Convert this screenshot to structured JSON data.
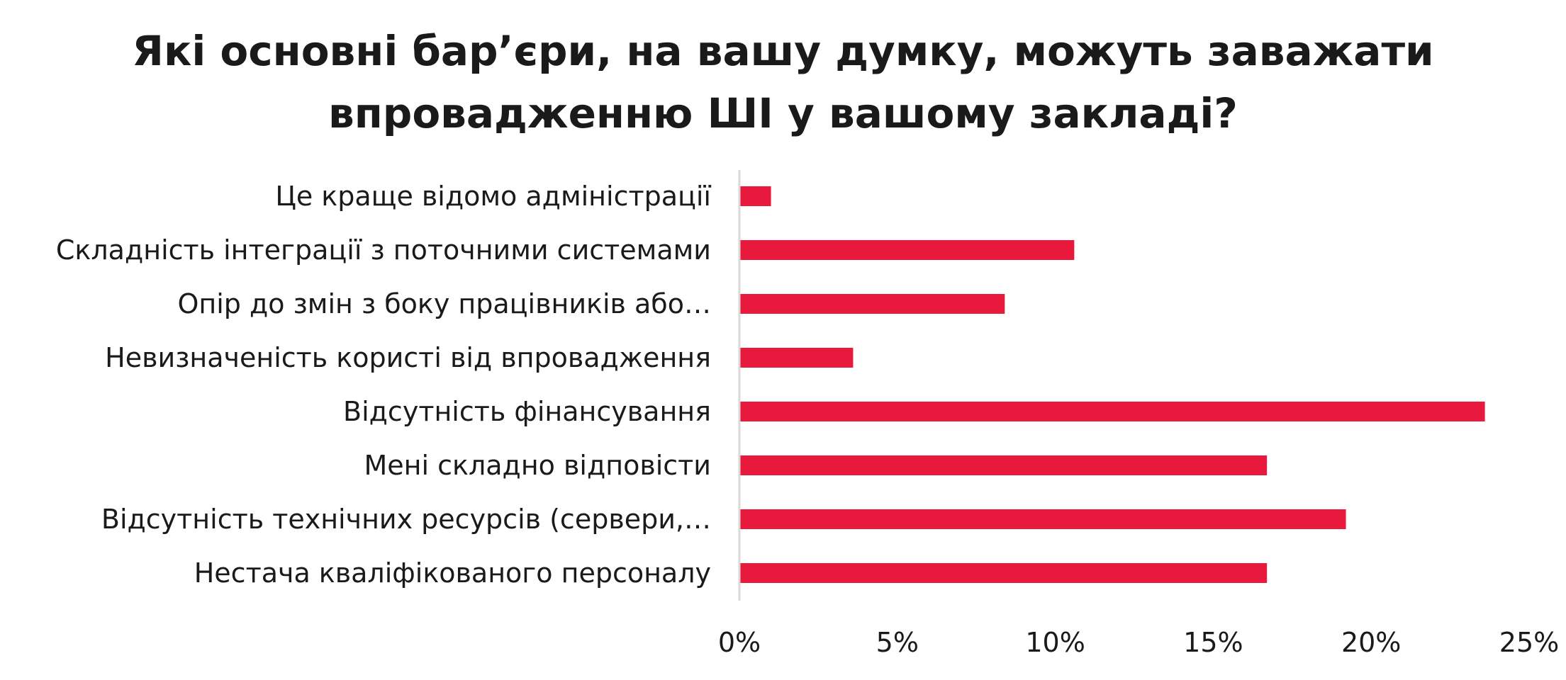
{
  "chart_data": {
    "type": "bar",
    "orientation": "horizontal",
    "title": "Які основні бар’єри, на вашу думку, можуть заважати\nвпровадженню ШІ у вашому закладі?",
    "categories": [
      "Це краще відомо адміністрації",
      "Складність інтеграції з поточними системами",
      "Опір до змін з боку працівників або…",
      "Невизначеність користі від впровадження",
      "Відсутність фінансування",
      "Мені складно відповісти",
      "Відсутність технічних ресурсів (сервери,…",
      "Нестача кваліфікованого персоналу"
    ],
    "values": [
      1.0,
      10.6,
      8.4,
      3.6,
      23.6,
      16.7,
      19.2,
      16.7
    ],
    "xlim": [
      0,
      25
    ],
    "xticks": [
      0,
      5,
      10,
      15,
      20,
      25
    ],
    "xtick_labels": [
      "0%",
      "5%",
      "10%",
      "15%",
      "20%",
      "25%"
    ],
    "bar_color": "#E8193C",
    "axis_color": "#d9d9d9",
    "grid": false,
    "legend": "none"
  }
}
